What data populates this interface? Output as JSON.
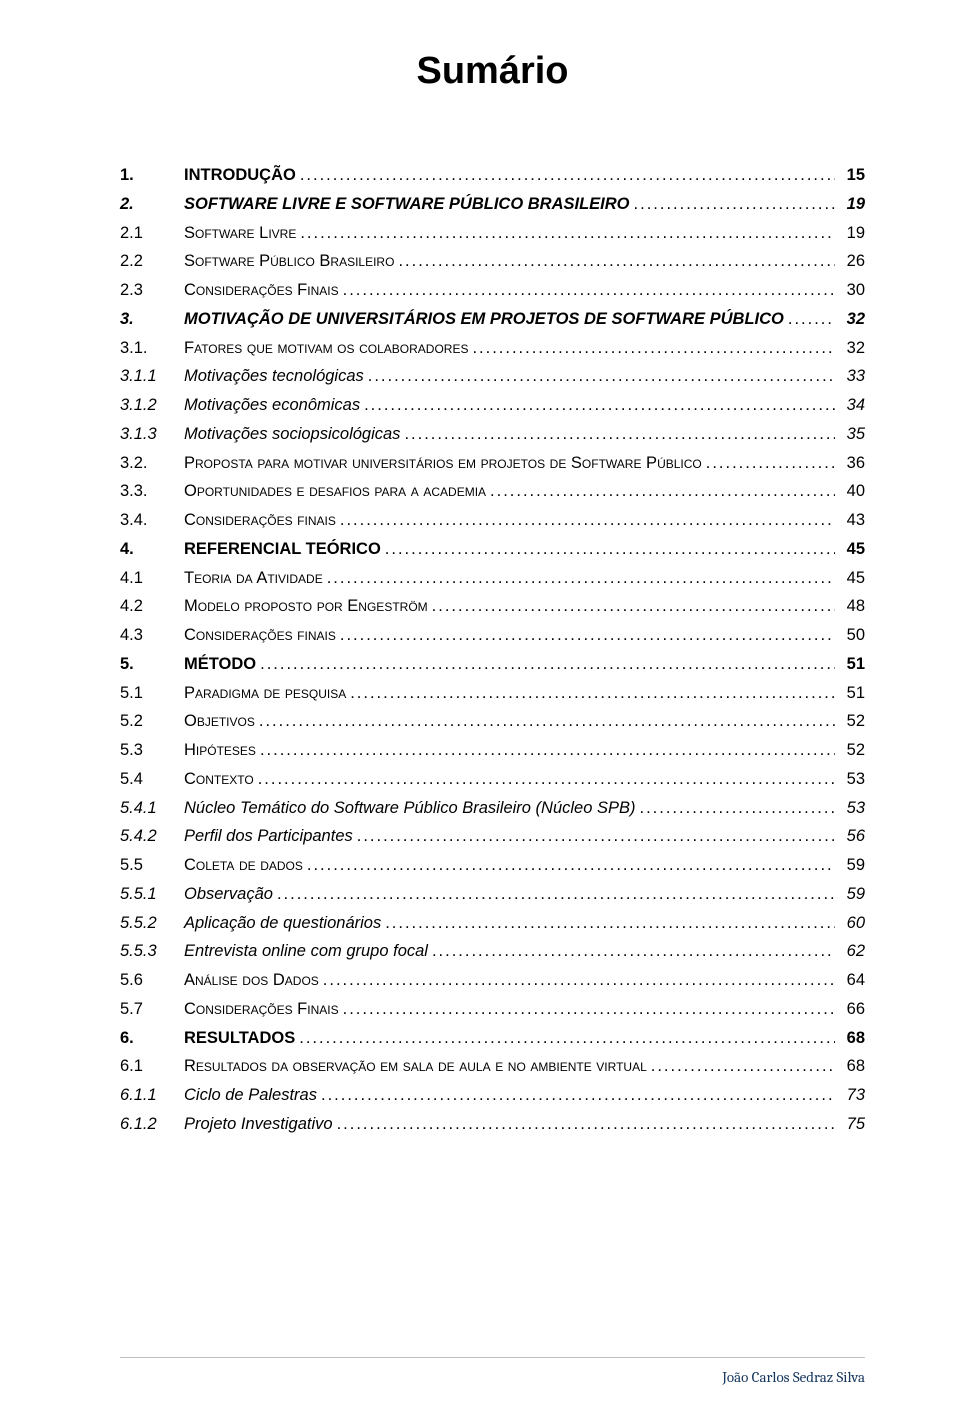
{
  "title": "Sumário",
  "footer": "João Carlos Sedraz Silva",
  "colors": {
    "text": "#000000",
    "footer_text": "#17365d",
    "footer_line": "#bfbfbf",
    "background": "#ffffff"
  },
  "toc": [
    {
      "num": "1.",
      "label": "INTRODUÇÃO",
      "page": "15",
      "style": "l1"
    },
    {
      "num": "2.",
      "label": "SOFTWARE LIVRE E SOFTWARE PÚBLICO BRASILEIRO",
      "page": "19",
      "style": "bold-italic"
    },
    {
      "num": "2.1",
      "label": "Software Livre",
      "page": "19",
      "style": "smallcaps"
    },
    {
      "num": "2.2",
      "label": "Software Público Brasileiro",
      "page": "26",
      "style": "smallcaps"
    },
    {
      "num": "2.3",
      "label": "Considerações Finais",
      "page": "30",
      "style": "smallcaps"
    },
    {
      "num": "3.",
      "label": "MOTIVAÇÃO DE UNIVERSITÁRIOS EM PROJETOS DE SOFTWARE PÚBLICO",
      "page": "32",
      "style": "bold-italic"
    },
    {
      "num": "3.1.",
      "label": "Fatores que motivam os colaboradores",
      "page": "32",
      "style": "smallcaps"
    },
    {
      "num": "3.1.1",
      "label": "Motivações tecnológicas",
      "page": "33",
      "style": "italic"
    },
    {
      "num": "3.1.2",
      "label": "Motivações econômicas",
      "page": "34",
      "style": "italic"
    },
    {
      "num": "3.1.3",
      "label": "Motivações sociopsicológicas",
      "page": "35",
      "style": "italic"
    },
    {
      "num": "3.2.",
      "label": "Proposta para motivar universitários em projetos de Software Público",
      "page": "36",
      "style": "smallcaps"
    },
    {
      "num": "3.3.",
      "label": "Oportunidades e desafios para a academia",
      "page": "40",
      "style": "smallcaps"
    },
    {
      "num": "3.4.",
      "label": "Considerações finais",
      "page": "43",
      "style": "smallcaps"
    },
    {
      "num": "4.",
      "label": "REFERENCIAL TEÓRICO",
      "page": "45",
      "style": "l1"
    },
    {
      "num": "4.1",
      "label": "Teoria da Atividade",
      "page": "45",
      "style": "smallcaps"
    },
    {
      "num": "4.2",
      "label": "Modelo proposto por Engeström",
      "page": "48",
      "style": "smallcaps"
    },
    {
      "num": "4.3",
      "label": "Considerações finais",
      "page": "50",
      "style": "smallcaps"
    },
    {
      "num": "5.",
      "label": "MÉTODO",
      "page": "51",
      "style": "l1"
    },
    {
      "num": "5.1",
      "label": "Paradigma de pesquisa",
      "page": "51",
      "style": "smallcaps"
    },
    {
      "num": "5.2",
      "label": "Objetivos",
      "page": "52",
      "style": "smallcaps"
    },
    {
      "num": "5.3",
      "label": "Hipóteses",
      "page": "52",
      "style": "smallcaps"
    },
    {
      "num": "5.4",
      "label": "Contexto",
      "page": "53",
      "style": "smallcaps"
    },
    {
      "num": "5.4.1",
      "label": "Núcleo Temático do Software Público Brasileiro (Núcleo SPB)",
      "page": "53",
      "style": "italic"
    },
    {
      "num": "5.4.2",
      "label": "Perfil dos Participantes",
      "page": "56",
      "style": "italic"
    },
    {
      "num": "5.5",
      "label": "Coleta de dados",
      "page": "59",
      "style": "smallcaps"
    },
    {
      "num": "5.5.1",
      "label": "Observação",
      "page": "59",
      "style": "italic"
    },
    {
      "num": "5.5.2",
      "label": "Aplicação de questionários",
      "page": "60",
      "style": "italic"
    },
    {
      "num": "5.5.3",
      "label": "Entrevista online com grupo focal",
      "page": "62",
      "style": "italic"
    },
    {
      "num": "5.6",
      "label": "Análise dos Dados",
      "page": "64",
      "style": "smallcaps"
    },
    {
      "num": "5.7",
      "label": "Considerações Finais",
      "page": "66",
      "style": "smallcaps"
    },
    {
      "num": "6.",
      "label": "RESULTADOS",
      "page": "68",
      "style": "l1"
    },
    {
      "num": "6.1",
      "label": "Resultados da observação em sala de aula e no ambiente virtual",
      "page": "68",
      "style": "smallcaps"
    },
    {
      "num": "6.1.1",
      "label": "Ciclo de Palestras",
      "page": "73",
      "style": "italic"
    },
    {
      "num": "6.1.2",
      "label": "Projeto Investigativo",
      "page": "75",
      "style": "italic"
    }
  ]
}
